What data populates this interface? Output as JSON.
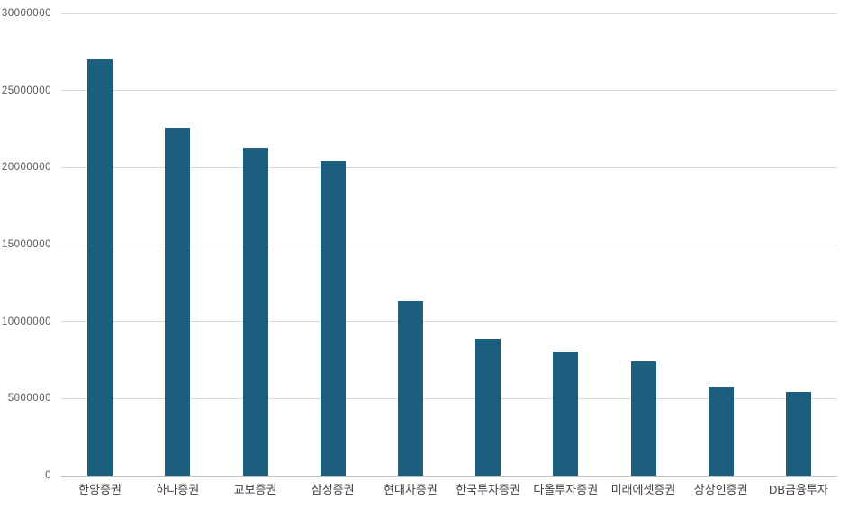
{
  "page": {
    "background": "#FFFFFF"
  },
  "colors": {
    "bar": "#1B5E7E",
    "gridline": "#D9D9D9",
    "axis_line": "#BFBFBF",
    "ytick_label": "#595959",
    "category_label": "#404040"
  },
  "chart_data": {
    "type": "bar",
    "title": "",
    "xlabel": "",
    "ylabel": "",
    "categories": [
      "한양증권",
      "하나증권",
      "교보증권",
      "삼성증권",
      "현대차증권",
      "한국투자증권",
      "다올투자증권",
      "미래에셋증권",
      "상상인증권",
      "DB금융투자"
    ],
    "values": [
      27000000,
      22600000,
      21250000,
      20450000,
      11350000,
      8850000,
      8050000,
      7400000,
      5800000,
      5450000
    ],
    "ylim": [
      0,
      30000000
    ],
    "yticks": [
      0,
      5000000,
      10000000,
      15000000,
      20000000,
      25000000,
      30000000
    ],
    "ytick_labels": [
      "0",
      "5000000",
      "10000000",
      "15000000",
      "20000000",
      "25000000",
      "30000000"
    ],
    "grid": true,
    "legend": false
  }
}
